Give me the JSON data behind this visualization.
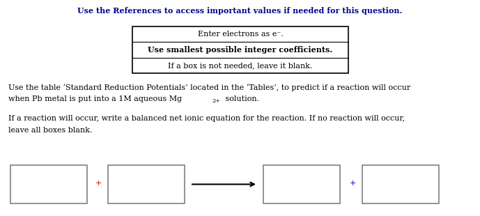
{
  "title": "Use the References to access important values if needed for this question.",
  "title_color": "#00008B",
  "title_fontsize": 8.0,
  "instruction_lines": [
    "Enter electrons as e⁻.",
    "Use smallest possible integer coefficients.",
    "If a box is not needed, leave it blank."
  ],
  "instruction_bold": [
    false,
    true,
    false
  ],
  "para1_line1": "Use the table ‘Standard Reduction Potentials’ located in the ‘Tables’, to predict if a reaction will occur",
  "para1_line2a": "when Pb metal is put into a 1M aqueous Mg",
  "para1_line2b": "2+",
  "para1_line2c": " solution.",
  "para2_line1": "If a reaction will occur, write a balanced net ionic equation for the reaction. If no reaction will occur,",
  "para2_line2": "leave all boxes blank.",
  "text_color": "#000000",
  "text_fontsize": 8.0,
  "bg_color": "#ffffff",
  "fig_width": 6.89,
  "fig_height": 3.1,
  "dpi": 100
}
